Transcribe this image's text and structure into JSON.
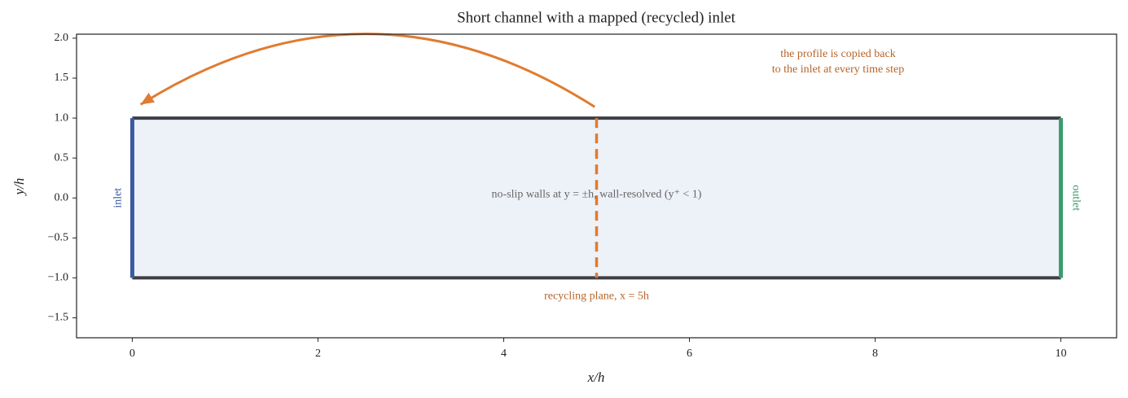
{
  "chart_data": {
    "type": "channel-schematic",
    "title": "Short channel with a mapped (recycled) inlet",
    "x_label": "x/h",
    "y_label": "y/h",
    "xlim": [
      -0.6,
      10.6
    ],
    "ylim": [
      -1.75,
      2.05
    ],
    "xticks": [
      0,
      2,
      4,
      6,
      8,
      10
    ],
    "yticks": [
      {
        "value": -1.5,
        "label": "−1.5"
      },
      {
        "value": -1,
        "label": "−1.0"
      },
      {
        "value": -0.5,
        "label": "−0.5"
      },
      {
        "value": 0,
        "label": "0.0"
      },
      0.5,
      {
        "value": 1,
        "label": "1.0"
      },
      1.5,
      {
        "value": 2,
        "label": "2.0"
      }
    ],
    "channel": {
      "x": [
        0,
        10
      ],
      "y": [
        -1,
        1
      ],
      "wall_color": "#3c3f44",
      "fill": "#edf1f8"
    },
    "inlet": {
      "x": 0,
      "label": "inlet",
      "color": "#3a5ba0"
    },
    "outlet": {
      "x": 10,
      "label": "outlet",
      "color": "#3a9a6f"
    },
    "recycling_plane": {
      "x": 5,
      "label": "recycling plane, x = 5h",
      "color": "#e07b30"
    },
    "arrow": {
      "from": [
        4.98,
        1.14
      ],
      "to": [
        0.09,
        1.17
      ],
      "color": "#e07b30",
      "label": [
        "the profile is copied back",
        "to the inlet at every time step"
      ]
    },
    "wall_note": "no-slip walls at y = ±h, wall-resolved (y⁺ < 1)"
  }
}
